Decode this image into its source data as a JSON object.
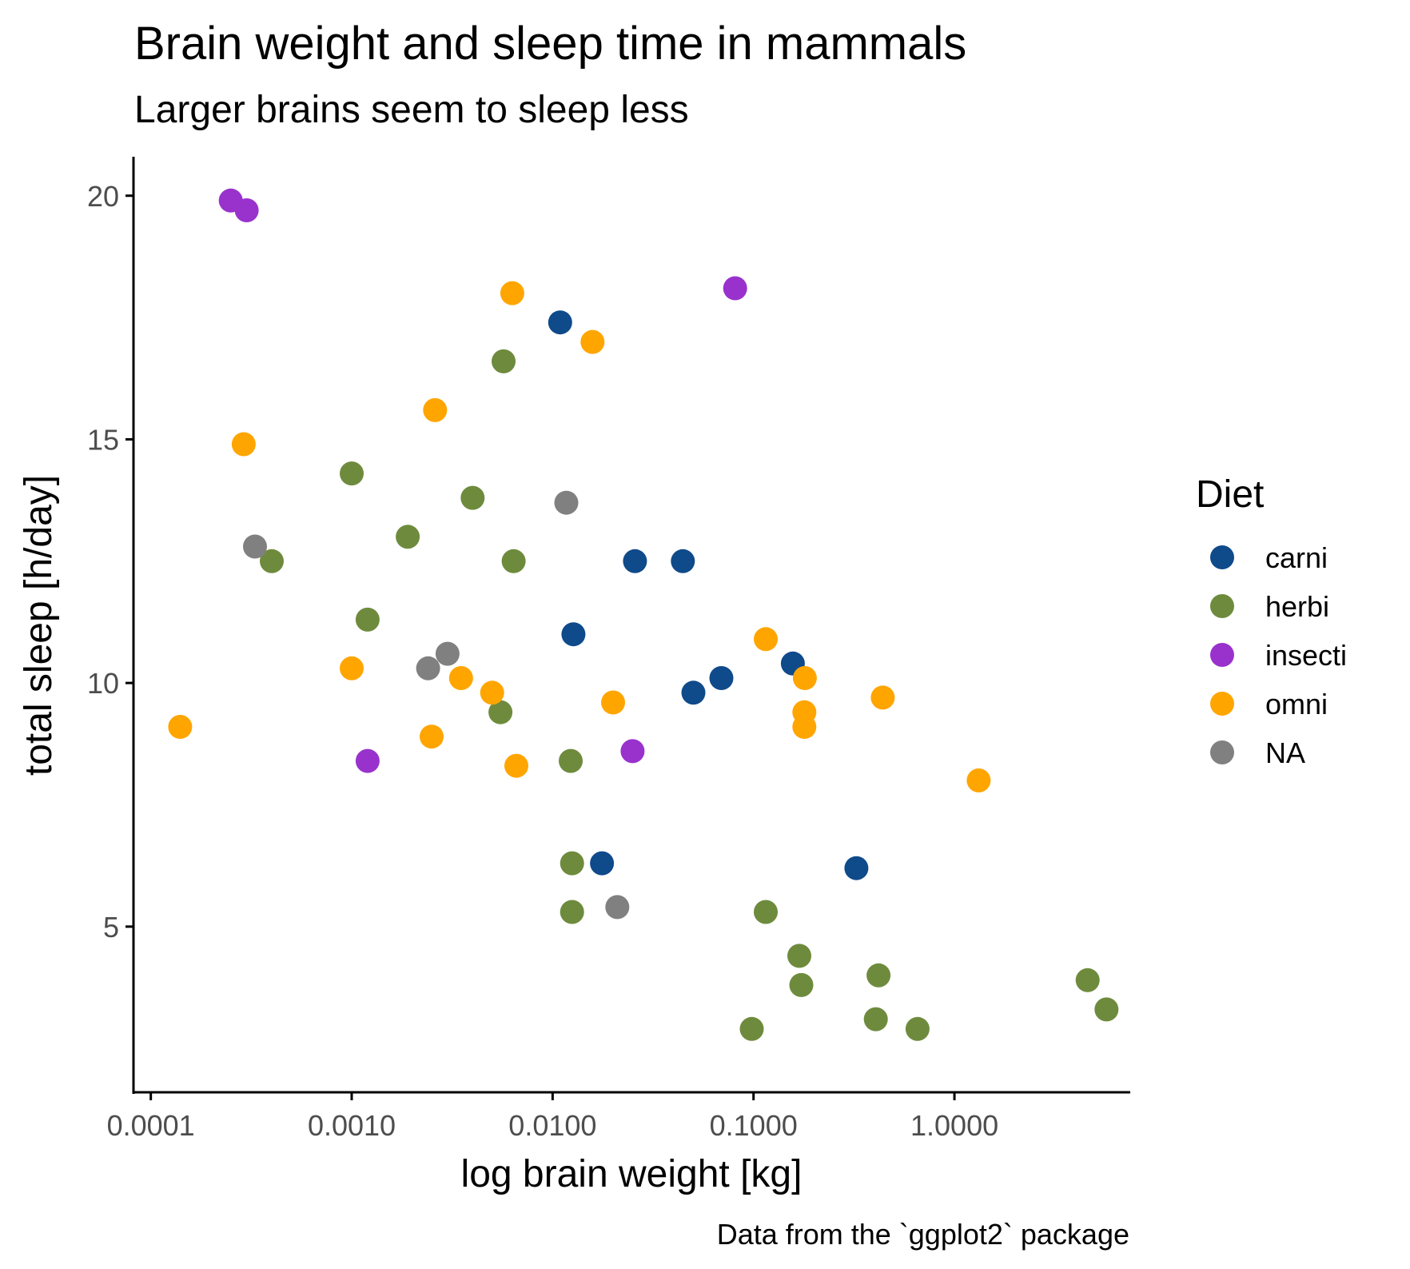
{
  "chart_data": {
    "type": "scatter",
    "title": "Brain weight and sleep time in mammals",
    "subtitle": "Larger brains seem to sleep less",
    "caption": "Data from the `ggplot2` package",
    "xlabel": "log brain weight [kg]",
    "ylabel": "total sleep [h/day]",
    "x_scale": "log10",
    "xlim": [
      8.2e-05,
      7.5
    ],
    "ylim": [
      1.6,
      20.8
    ],
    "x_ticks": [
      0.0001,
      0.001,
      0.01,
      0.1,
      1
    ],
    "x_tick_labels": [
      "0.0001",
      "0.0010",
      "0.0100",
      "0.1000",
      "1.0000"
    ],
    "y_ticks": [
      5,
      10,
      15,
      20
    ],
    "y_tick_labels": [
      "5",
      "10",
      "15",
      "20"
    ],
    "grid": false,
    "legend": {
      "title": "Diet",
      "position": "right"
    },
    "series": [
      {
        "name": "carni",
        "color": "#0F4A8A",
        "points": [
          {
            "x": 0.0109,
            "y": 17.4
          },
          {
            "x": 0.0257,
            "y": 12.5
          },
          {
            "x": 0.0445,
            "y": 12.5
          },
          {
            "x": 0.0127,
            "y": 11.0
          },
          {
            "x": 0.157,
            "y": 10.4
          },
          {
            "x": 0.0502,
            "y": 9.8
          },
          {
            "x": 0.0692,
            "y": 10.1
          },
          {
            "x": 0.0176,
            "y": 6.3
          },
          {
            "x": 0.325,
            "y": 6.2
          }
        ]
      },
      {
        "name": "herbi",
        "color": "#6E8B3D",
        "points": [
          {
            "x": 0.0057,
            "y": 16.6
          },
          {
            "x": 0.001,
            "y": 14.3
          },
          {
            "x": 0.004,
            "y": 13.8
          },
          {
            "x": 0.0019,
            "y": 13.0
          },
          {
            "x": 0.0064,
            "y": 12.5
          },
          {
            "x": 0.0004,
            "y": 12.5
          },
          {
            "x": 0.0012,
            "y": 11.3
          },
          {
            "x": 0.0055,
            "y": 9.4
          },
          {
            "x": 0.0123,
            "y": 8.4
          },
          {
            "x": 0.0125,
            "y": 6.3
          },
          {
            "x": 0.0125,
            "y": 5.3
          },
          {
            "x": 0.115,
            "y": 5.3
          },
          {
            "x": 0.169,
            "y": 4.4
          },
          {
            "x": 0.173,
            "y": 3.8
          },
          {
            "x": 0.419,
            "y": 4.0
          },
          {
            "x": 0.098,
            "y": 2.9
          },
          {
            "x": 0.406,
            "y": 3.1
          },
          {
            "x": 0.655,
            "y": 2.9
          },
          {
            "x": 4.603,
            "y": 3.9
          },
          {
            "x": 5.712,
            "y": 3.3
          }
        ]
      },
      {
        "name": "insecti",
        "color": "#9932CC",
        "points": [
          {
            "x": 0.00025,
            "y": 19.9
          },
          {
            "x": 0.0003,
            "y": 19.7
          },
          {
            "x": 0.081,
            "y": 18.1
          },
          {
            "x": 0.0012,
            "y": 8.4
          },
          {
            "x": 0.025,
            "y": 8.6
          }
        ]
      },
      {
        "name": "omni",
        "color": "#FFA500",
        "points": [
          {
            "x": 0.0063,
            "y": 18.0
          },
          {
            "x": 0.0158,
            "y": 17.0
          },
          {
            "x": 0.0026,
            "y": 15.6
          },
          {
            "x": 0.00029,
            "y": 14.9
          },
          {
            "x": 0.115,
            "y": 10.9
          },
          {
            "x": 0.001,
            "y": 10.3
          },
          {
            "x": 0.0035,
            "y": 10.1
          },
          {
            "x": 0.005,
            "y": 9.8
          },
          {
            "x": 0.02,
            "y": 9.6
          },
          {
            "x": 0.18,
            "y": 10.1
          },
          {
            "x": 0.44,
            "y": 9.7
          },
          {
            "x": 0.179,
            "y": 9.4
          },
          {
            "x": 0.179,
            "y": 9.1
          },
          {
            "x": 0.00014,
            "y": 9.1
          },
          {
            "x": 0.0025,
            "y": 8.9
          },
          {
            "x": 0.0066,
            "y": 8.3
          },
          {
            "x": 1.32,
            "y": 8.0
          }
        ]
      },
      {
        "name": "NA",
        "color": "#808080",
        "points": [
          {
            "x": 0.0117,
            "y": 13.7
          },
          {
            "x": 0.00033,
            "y": 12.8
          },
          {
            "x": 0.003,
            "y": 10.6
          },
          {
            "x": 0.0024,
            "y": 10.3
          },
          {
            "x": 0.021,
            "y": 5.4
          }
        ]
      }
    ]
  }
}
